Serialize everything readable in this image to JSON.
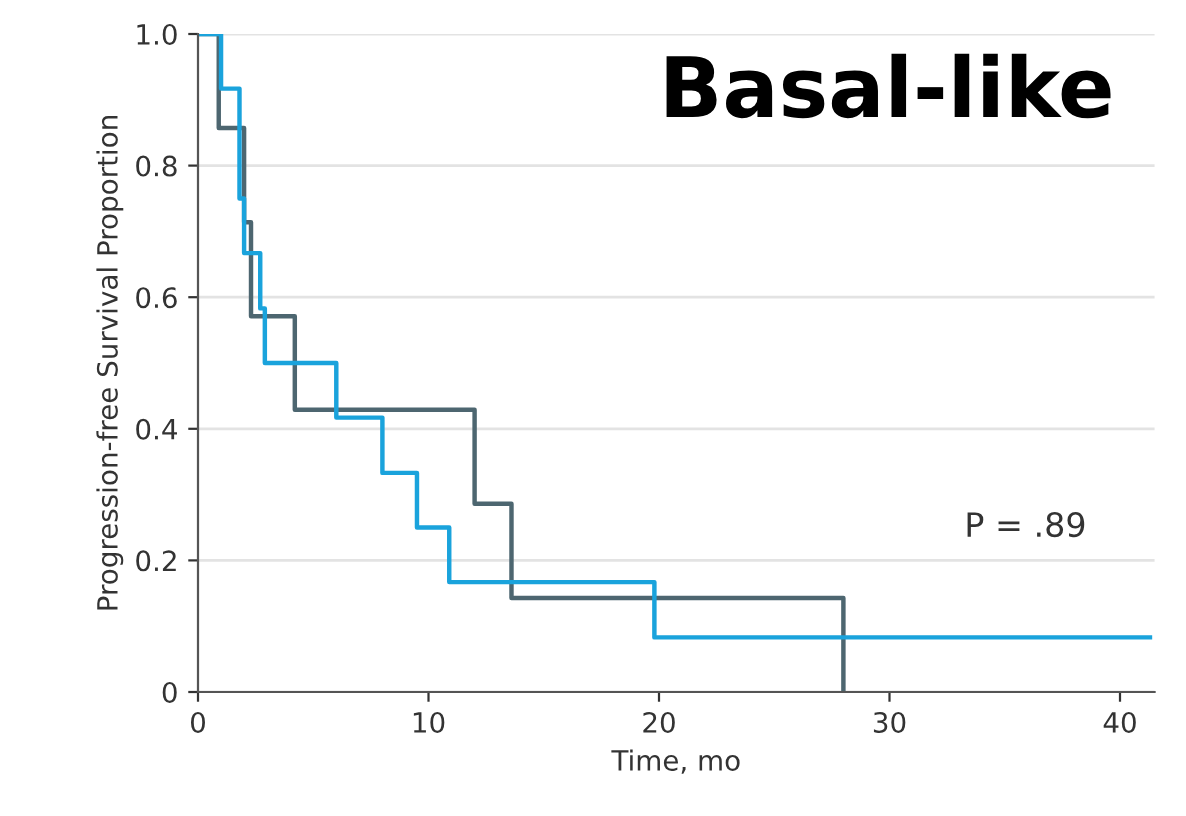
{
  "chart_data": {
    "type": "step",
    "title": "Basal-like",
    "xlabel": "Time, mo",
    "ylabel": "Progression-free Survival Proportion",
    "series": [
      {
        "color": "#4d6670",
        "x": [
          0,
          0.9,
          2.0,
          2.3,
          4.2,
          12.0,
          13.6,
          28.0
        ],
        "values": [
          1.0,
          0.857,
          0.714,
          0.571,
          0.429,
          0.286,
          0.143,
          0
        ]
      },
      {
        "color": "#1aa3dc",
        "x": [
          0,
          1.0,
          1.8,
          2.0,
          2.7,
          2.9,
          6.0,
          8.0,
          9.5,
          10.9,
          19.8,
          41.3
        ],
        "values": [
          1.0,
          0.917,
          0.75,
          0.667,
          0.583,
          0.5,
          0.417,
          0.333,
          0.25,
          0.167,
          0.083,
          0.083
        ]
      }
    ],
    "xlim": [
      0,
      41.5
    ],
    "xticks": [
      0,
      10,
      20,
      30,
      40
    ],
    "ylim": [
      0,
      1.0
    ],
    "yticks": [
      0,
      {
        "value": 0.2,
        "label": "0.2"
      },
      {
        "value": 0.4,
        "label": "0.4"
      },
      {
        "value": 0.6,
        "label": "0.6"
      },
      {
        "value": 0.8,
        "label": "0.8"
      },
      {
        "value": 1.0,
        "label": "1.0"
      }
    ],
    "grid": "y",
    "annotations": [
      "P = .89"
    ]
  }
}
